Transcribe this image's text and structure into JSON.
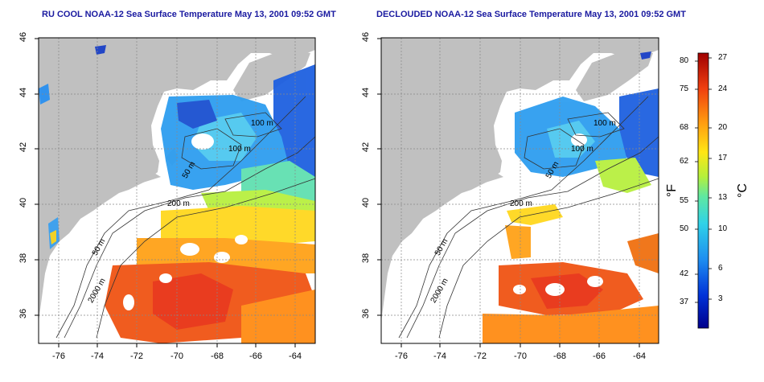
{
  "titles": {
    "left": "RU COOL NOAA-12 Sea Surface Temperature May 13, 2001 09:52 GMT",
    "right": "DECLOUDED NOAA-12 Sea Surface Temperature May 13, 2001 09:52 GMT"
  },
  "axes": {
    "x_ticks": [
      "-76",
      "-74",
      "-72",
      "-70",
      "-68",
      "-66",
      "-64"
    ],
    "y_ticks": [
      "46",
      "44",
      "42",
      "40",
      "38",
      "36"
    ]
  },
  "contour_labels": {
    "left": [
      "100 m",
      "100 m",
      "200 m",
      "50 m",
      "50 m",
      "2000 m"
    ],
    "right": [
      "100 m",
      "100 m",
      "200 m",
      "50 m",
      "50 m",
      "2000 m"
    ]
  },
  "colorbar": {
    "fahrenheit_ticks": [
      "80",
      "75",
      "68",
      "62",
      "55",
      "50",
      "42",
      "37"
    ],
    "celsius_ticks": [
      "27",
      "24",
      "20",
      "17",
      "13",
      "10",
      "6",
      "3"
    ],
    "unit_f": "°F",
    "unit_c": "°C"
  },
  "colors": {
    "land": "#c0c0c0",
    "cold": "#1a40c8",
    "cool": "#3ab8f0",
    "mild": "#f5d21e",
    "warm": "#f07010",
    "hot": "#e63214",
    "title": "#1a1aa0"
  }
}
